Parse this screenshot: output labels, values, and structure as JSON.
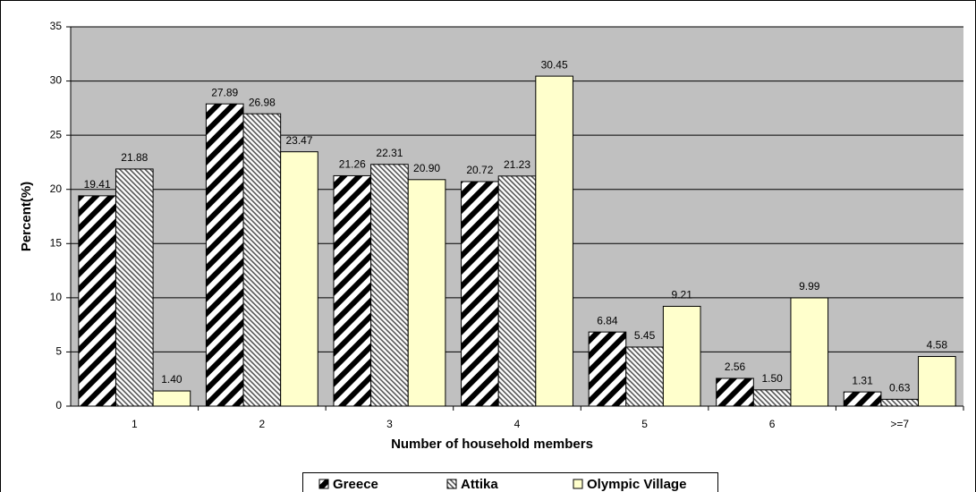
{
  "chart_data": {
    "type": "bar",
    "x_label": "Number of household members",
    "y_label": "Percent(%)",
    "categories": [
      "1",
      "2",
      "3",
      "4",
      "5",
      "6",
      ">=7"
    ],
    "series": [
      {
        "name": "Greece",
        "color": "#000000",
        "pattern": "wide-diagonal",
        "values": [
          19.41,
          27.89,
          21.26,
          20.72,
          6.84,
          2.56,
          1.31
        ],
        "value_labels": [
          "19.41",
          "27.89",
          "21.26",
          "20.72",
          "6.84",
          "2.56",
          "1.31"
        ]
      },
      {
        "name": "Attika",
        "color": "#555555",
        "pattern": "narrow-diagonal",
        "values": [
          21.88,
          26.98,
          22.31,
          21.23,
          5.45,
          1.5,
          0.63
        ],
        "value_labels": [
          "21.88",
          "26.98",
          "22.31",
          "21.23",
          "5.45",
          "1.50",
          "0.63"
        ]
      },
      {
        "name": "Olympic Village",
        "color": "#ffffcc",
        "pattern": "solid",
        "values": [
          1.4,
          23.47,
          20.9,
          30.45,
          9.21,
          9.99,
          4.58
        ],
        "value_labels": [
          "1.40",
          "23.47",
          "20.90",
          "30.45",
          "9.21",
          "9.99",
          "4.58"
        ]
      }
    ],
    "ylim": [
      0,
      35
    ],
    "yticks": [
      0,
      5,
      10,
      15,
      20,
      25,
      30,
      35
    ],
    "grid": true,
    "plot_background": "#c0c0c0",
    "legend": "bottom"
  }
}
